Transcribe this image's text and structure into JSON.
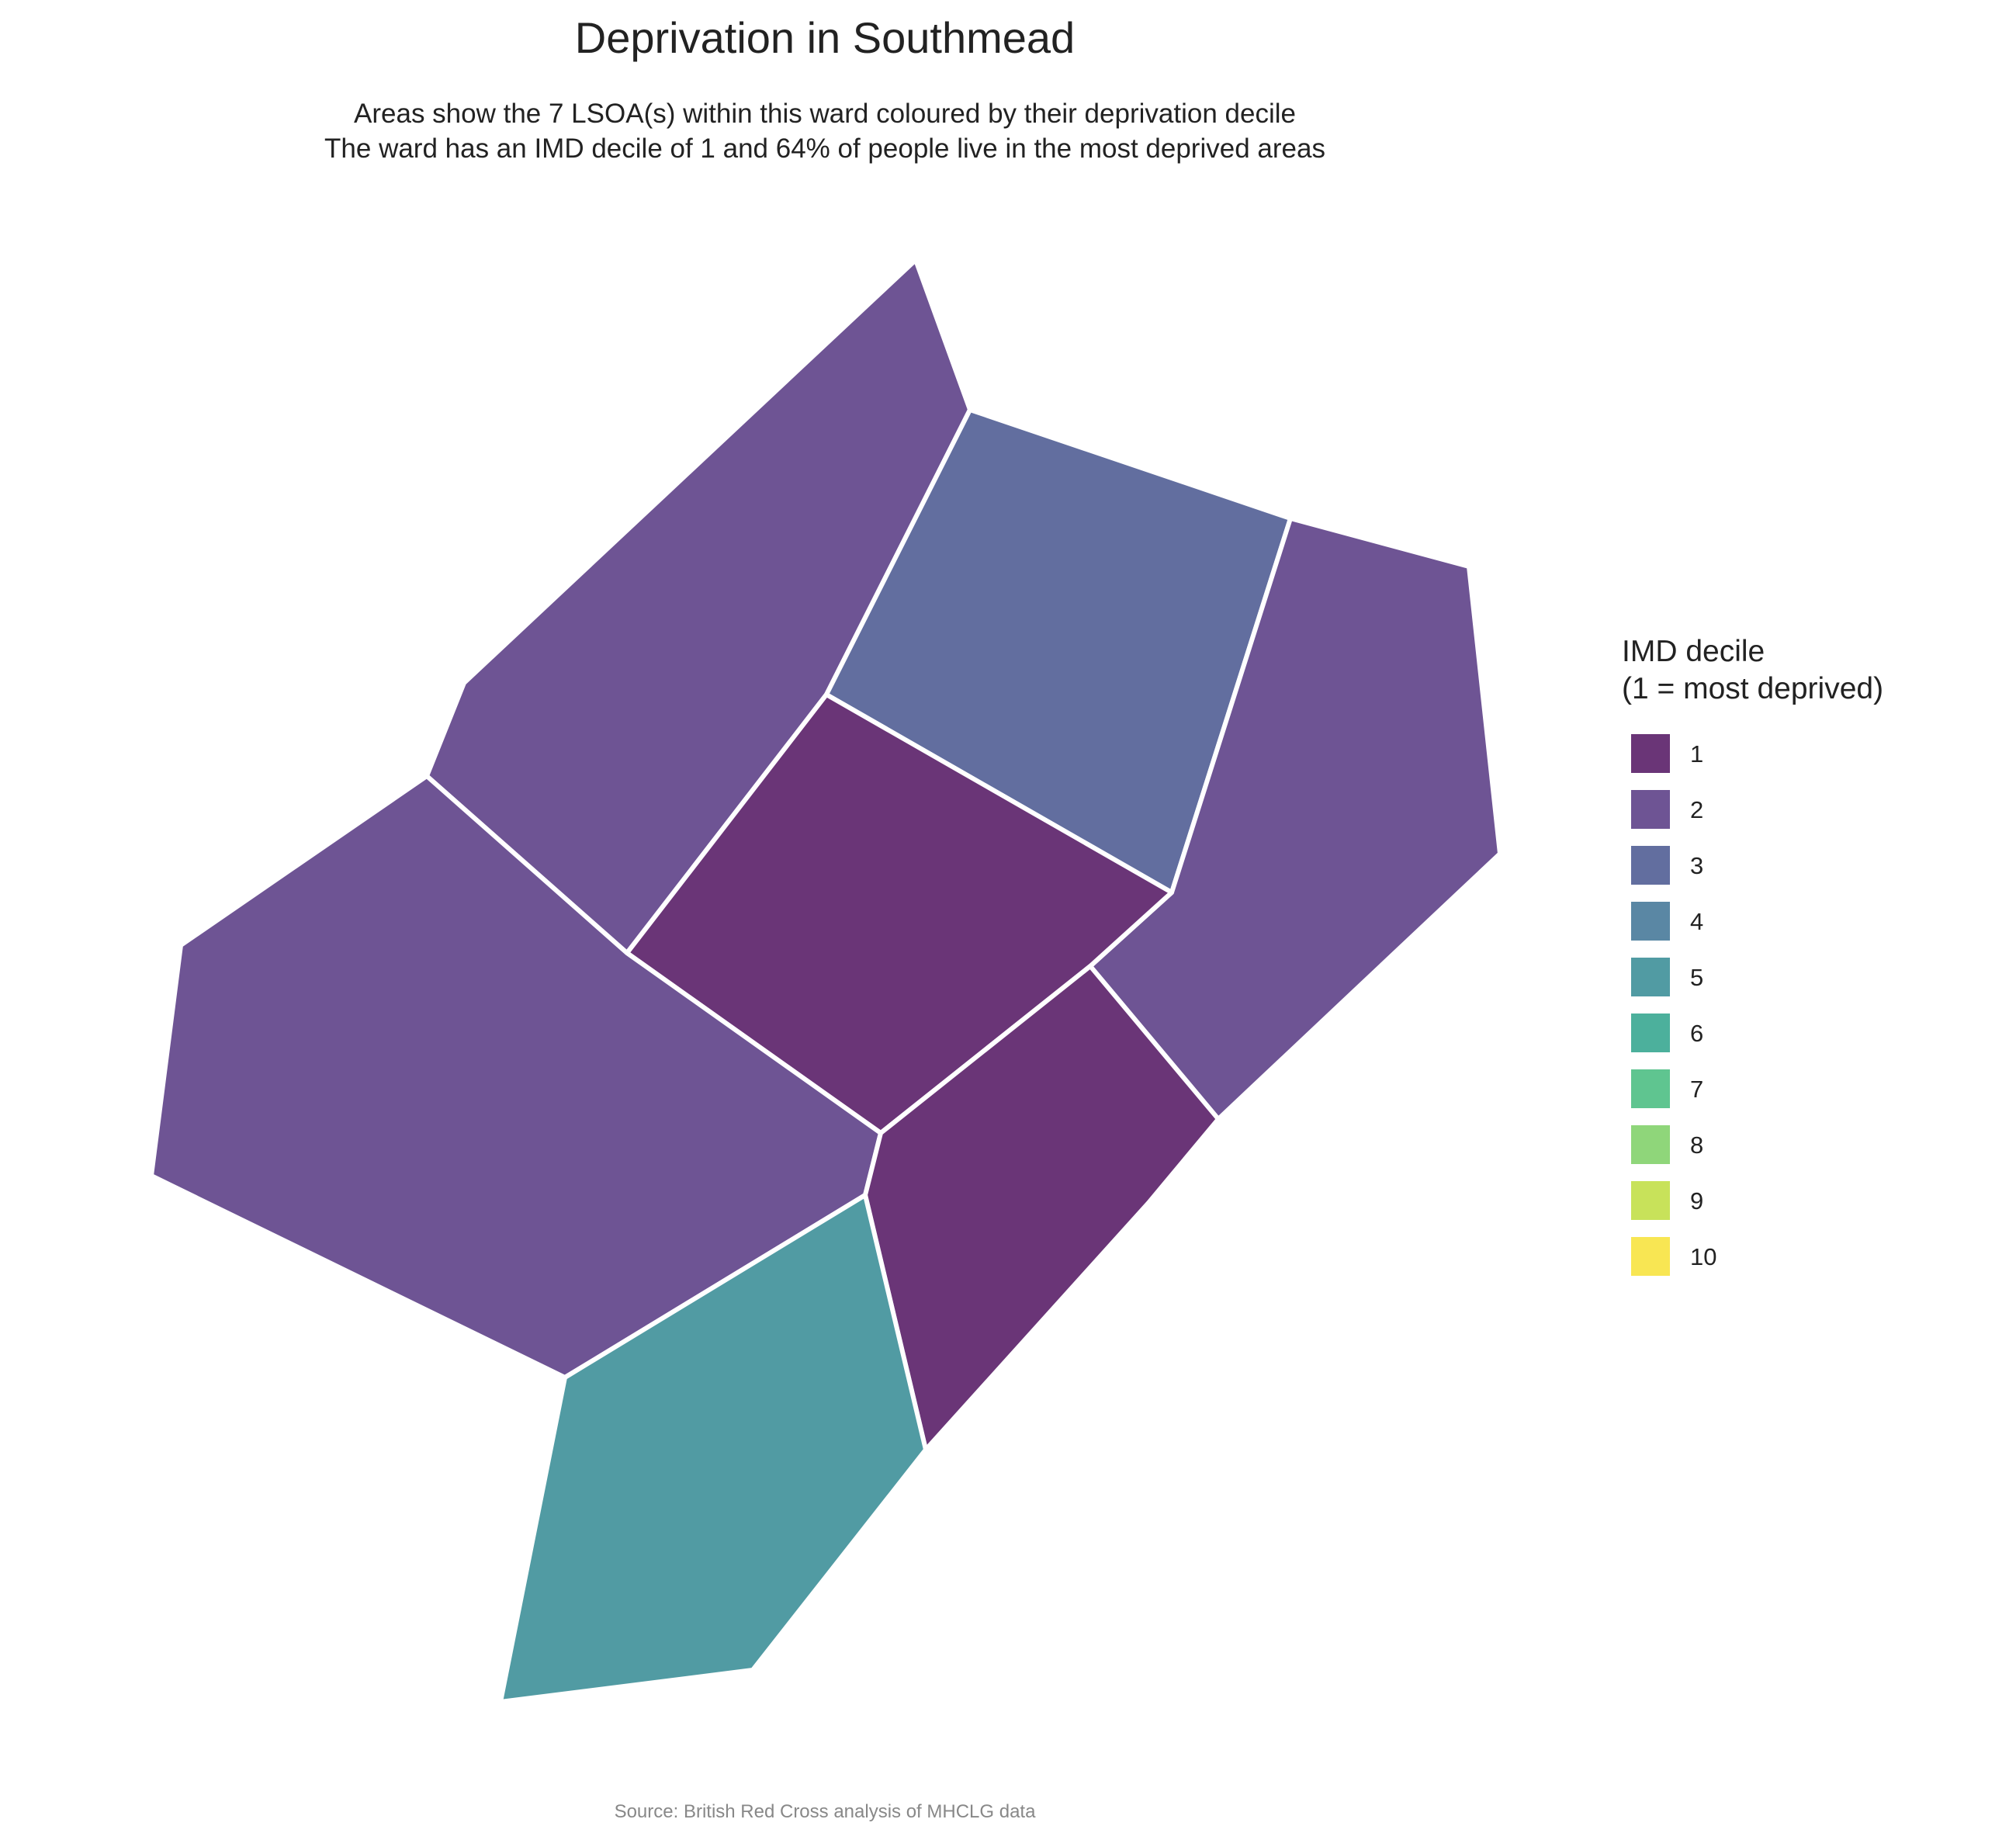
{
  "title": "Deprivation in Southmead",
  "subtitle": [
    "Areas show the 7 LSOA(s) within this ward coloured by their deprivation decile",
    "The ward has an IMD decile of 1 and 64% of people live in the most deprived areas"
  ],
  "caption": "Source: British Red Cross analysis of MHCLG data",
  "legend": {
    "title": [
      "IMD decile",
      "(1 = most deprived)"
    ],
    "items": [
      {
        "label": "1",
        "color": "#6a3577"
      },
      {
        "label": "2",
        "color": "#6e5494"
      },
      {
        "label": "3",
        "color": "#626e9f"
      },
      {
        "label": "4",
        "color": "#5a87a4"
      },
      {
        "label": "5",
        "color": "#519ba3"
      },
      {
        "label": "6",
        "color": "#4cb09c"
      },
      {
        "label": "7",
        "color": "#5fc590"
      },
      {
        "label": "8",
        "color": "#8fd67a"
      },
      {
        "label": "9",
        "color": "#c8e25a"
      },
      {
        "label": "10",
        "color": "#f8e653"
      }
    ]
  },
  "chart_data": {
    "type": "choropleth",
    "variable": "IMD decile",
    "areas": [
      {
        "decile": 2
      },
      {
        "decile": 3
      },
      {
        "decile": 2
      },
      {
        "decile": 1
      },
      {
        "decile": 2
      },
      {
        "decile": 1
      },
      {
        "decile": 5
      }
    ]
  }
}
